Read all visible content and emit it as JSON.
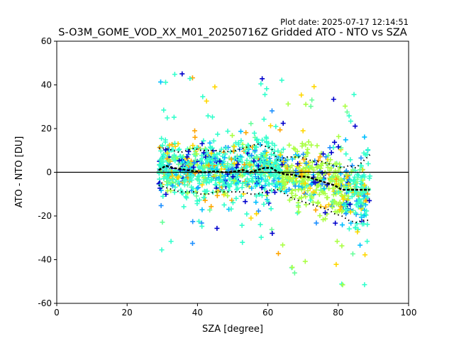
{
  "plot_date": "Plot date: 2025-07-17 12:14:51",
  "chart_data": {
    "type": "scatter",
    "title": "S-O3M_GOME_VOD_XX_M01_20250716Z Gridded ATO - NTO vs SZA",
    "xlabel": "SZA [degree]",
    "ylabel": "ATO - NTO [DU]",
    "xlim": [
      0,
      100
    ],
    "ylim": [
      -60,
      60
    ],
    "xticks": [
      0,
      20,
      40,
      60,
      80,
      100
    ],
    "yticks": [
      -60,
      -40,
      -20,
      0,
      20,
      40,
      60
    ],
    "grid": false,
    "zero_line": 0,
    "scatter_marker": "plus",
    "scatter_colors": [
      "#0000cc",
      "#1e90ff",
      "#00bfff",
      "#33ffcc",
      "#66ff99",
      "#aaff44",
      "#ffd700",
      "#ffa500"
    ],
    "scatter_x_range": [
      29,
      89
    ],
    "mean_line": {
      "x": [
        29,
        31,
        33,
        35,
        37,
        39,
        41,
        43,
        45,
        47,
        49,
        51,
        53,
        55,
        57,
        59,
        61,
        63,
        65,
        67,
        69,
        71,
        73,
        75,
        77,
        79,
        81,
        83,
        85,
        87,
        89
      ],
      "y": [
        1,
        3,
        2,
        1.5,
        1,
        0.5,
        0,
        0,
        0.5,
        0,
        0,
        0.5,
        1,
        0,
        1,
        2,
        2,
        0,
        -1,
        -1,
        -2,
        -2,
        -3,
        -4,
        -5,
        -6,
        -8,
        -8,
        -8,
        -8,
        -8
      ]
    },
    "upper_band": {
      "x": [
        29,
        31,
        33,
        35,
        37,
        39,
        41,
        43,
        45,
        47,
        49,
        51,
        53,
        55,
        57,
        59,
        61,
        63,
        65,
        67,
        69,
        71,
        73,
        75,
        77,
        79,
        81,
        83,
        85,
        87,
        89
      ],
      "y": [
        11,
        11,
        10,
        9,
        10,
        11,
        10,
        10,
        10,
        9.5,
        9.5,
        10,
        11,
        12,
        13,
        12,
        11,
        5,
        7,
        7,
        7,
        6,
        5,
        5,
        4,
        3,
        2,
        3,
        2,
        5,
        8
      ]
    },
    "lower_band": {
      "x": [
        29,
        31,
        33,
        35,
        37,
        39,
        41,
        43,
        45,
        47,
        49,
        51,
        53,
        55,
        57,
        59,
        61,
        63,
        65,
        67,
        69,
        71,
        73,
        75,
        77,
        79,
        81,
        83,
        85,
        87,
        89
      ],
      "y": [
        -6,
        -7,
        -8,
        -9,
        -9,
        -9,
        -10,
        -10,
        -9,
        -9,
        -9,
        -9,
        -9,
        -10,
        -10,
        -9,
        -8,
        -8,
        -10,
        -12,
        -13,
        -14,
        -15,
        -16,
        -17,
        -19,
        -20,
        -22,
        -23,
        -22,
        -22
      ]
    }
  }
}
